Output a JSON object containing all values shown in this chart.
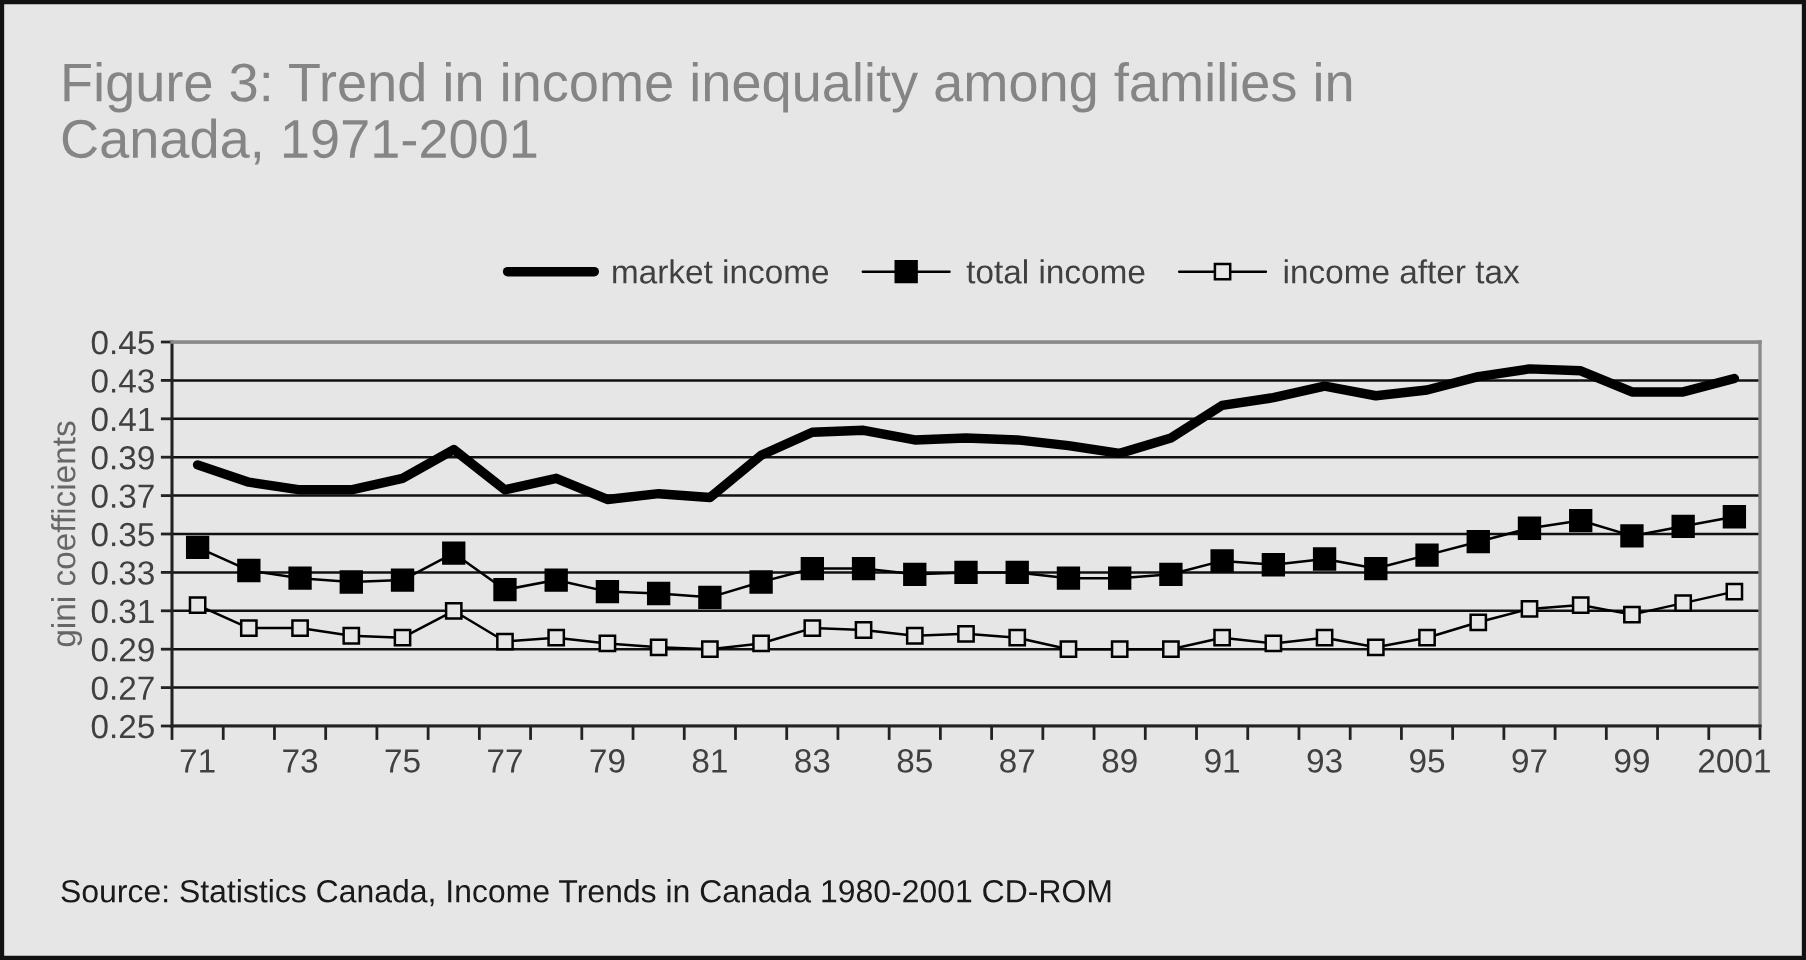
{
  "chart_data": {
    "type": "line",
    "title": "Figure 3: Trend in income inequality among families in\nCanada, 1971-2001",
    "ylabel": "gini coefficients",
    "annotations": [
      "Source: Statistics Canada, Income Trends in Canada 1980-2001 CD-ROM"
    ],
    "categories": [
      "71",
      null,
      "73",
      null,
      "75",
      null,
      "77",
      null,
      "79",
      null,
      "81",
      null,
      "83",
      null,
      "85",
      null,
      "87",
      null,
      "89",
      null,
      "91",
      null,
      "93",
      null,
      "95",
      null,
      "97",
      null,
      "99",
      null,
      "2001"
    ],
    "series": [
      {
        "name": "market income",
        "color": "#000000",
        "marker": "none",
        "values": [
          0.386,
          0.377,
          0.373,
          0.373,
          0.379,
          0.394,
          0.373,
          0.379,
          0.368,
          0.371,
          0.369,
          0.391,
          0.403,
          0.404,
          0.399,
          0.4,
          0.399,
          0.396,
          0.392,
          0.4,
          0.417,
          0.421,
          0.427,
          0.422,
          0.425,
          0.432,
          0.436,
          0.435,
          0.424,
          0.424,
          0.431
        ]
      },
      {
        "name": "total income",
        "color": "#000000",
        "marker": "square",
        "values": [
          0.343,
          0.331,
          0.327,
          0.325,
          0.326,
          0.34,
          0.321,
          0.326,
          0.32,
          0.319,
          0.317,
          0.325,
          0.332,
          0.332,
          0.329,
          0.33,
          0.33,
          0.327,
          0.327,
          0.329,
          0.336,
          0.334,
          0.337,
          0.332,
          0.339,
          0.346,
          0.353,
          0.357,
          0.349,
          0.354,
          0.359
        ]
      },
      {
        "name": "income after tax",
        "color": "#000000",
        "marker": "square",
        "values": [
          0.313,
          0.301,
          0.301,
          0.297,
          0.296,
          0.31,
          0.294,
          0.296,
          0.293,
          0.291,
          0.29,
          0.293,
          0.301,
          0.3,
          0.297,
          0.298,
          0.296,
          0.29,
          0.29,
          0.29,
          0.296,
          0.293,
          0.296,
          0.291,
          0.296,
          0.304,
          0.311,
          0.313,
          0.308,
          0.314,
          0.32
        ]
      }
    ],
    "ylim": [
      0.25,
      0.45
    ],
    "yticks": [
      0.25,
      0.27,
      0.29,
      0.31,
      0.33,
      0.35,
      0.37,
      0.39,
      0.41,
      0.43,
      0.45
    ],
    "grid": "y",
    "legend": "top",
    "line_style": "solid"
  }
}
